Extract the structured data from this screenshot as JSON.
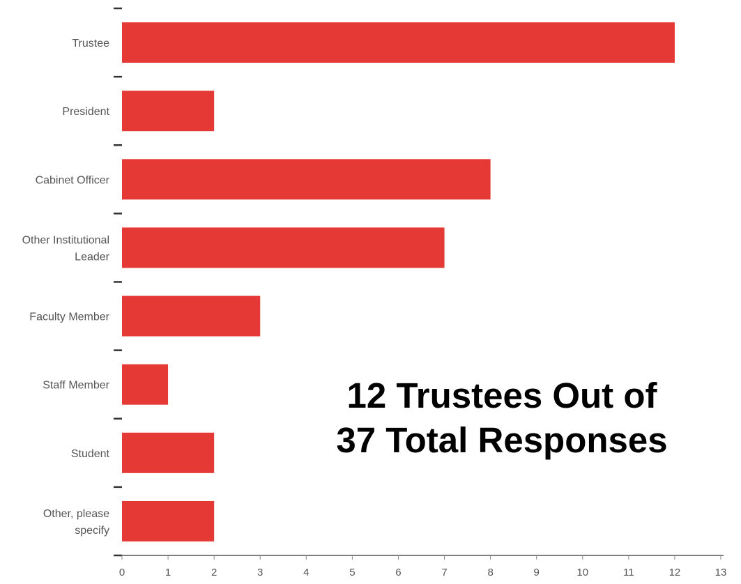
{
  "colors": {
    "bar": "#e53935",
    "axis": "#555555",
    "annotation": "#000000"
  },
  "annotation": {
    "line1": "12 Trustees Out of",
    "line2": "37 Total Responses"
  },
  "chart_data": {
    "type": "bar",
    "orientation": "horizontal",
    "categories": [
      [
        "Trustee"
      ],
      [
        "President"
      ],
      [
        "Cabinet Officer"
      ],
      [
        "Other Institutional",
        "Leader"
      ],
      [
        "Faculty Member"
      ],
      [
        "Staff Member"
      ],
      [
        "Student"
      ],
      [
        "Other, please",
        "specify"
      ]
    ],
    "values": [
      12,
      2,
      8,
      7,
      3,
      1,
      2,
      2
    ],
    "xlim": [
      0,
      13
    ],
    "xticks": [
      0,
      1,
      2,
      3,
      4,
      5,
      6,
      7,
      8,
      9,
      10,
      11,
      12,
      13
    ],
    "title": "",
    "xlabel": "",
    "ylabel": "",
    "grid": false,
    "legend": "none"
  }
}
